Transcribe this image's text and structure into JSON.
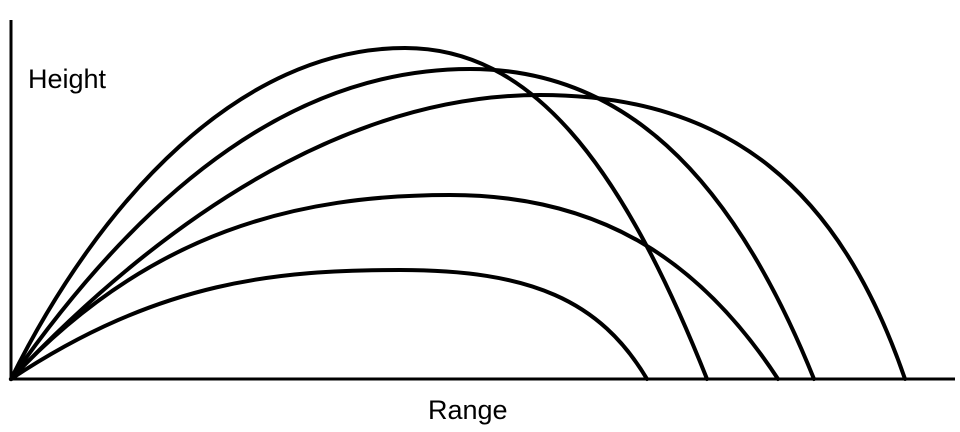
{
  "diagram": {
    "y_axis_label": "Height",
    "x_axis_label": "Range",
    "line_color": "#000000",
    "trajectory_count": 5
  }
}
